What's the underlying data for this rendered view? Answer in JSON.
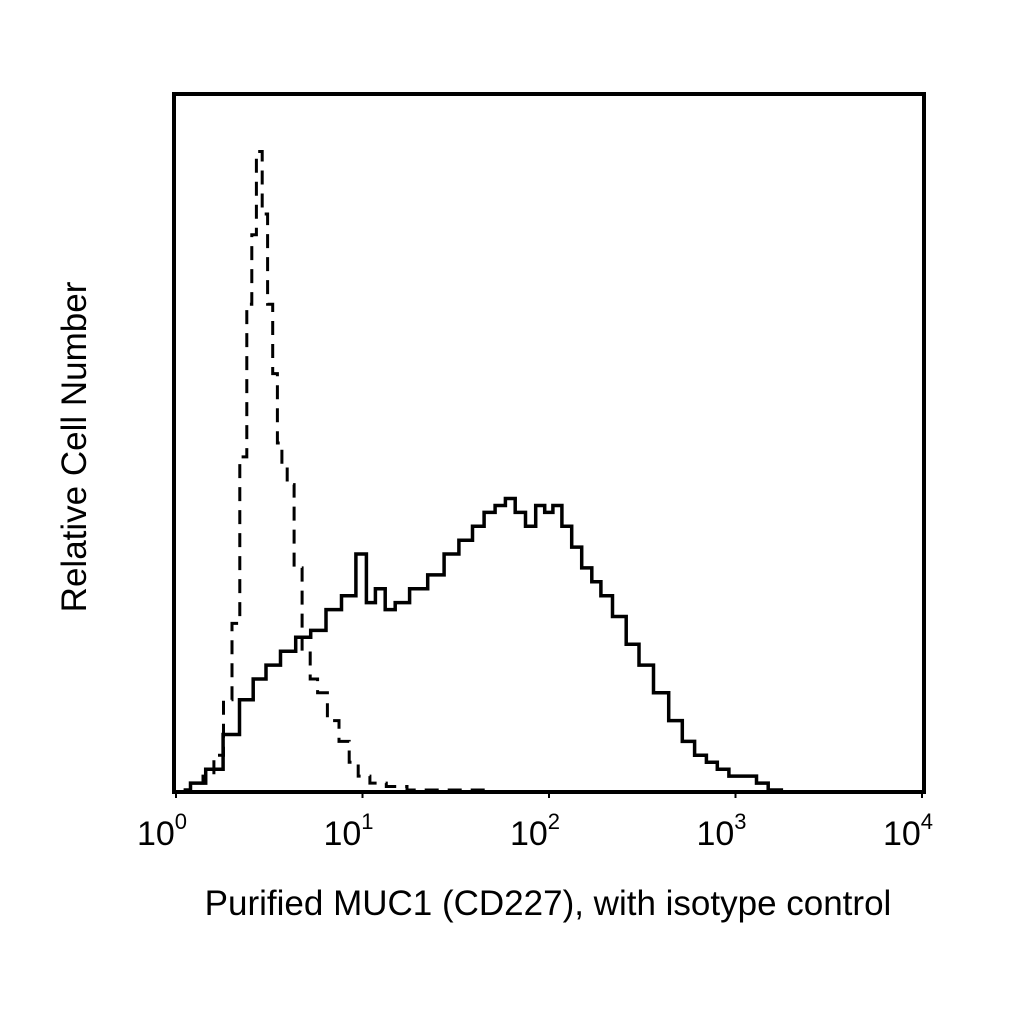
{
  "chart_data": {
    "type": "line",
    "xlabel": "Purified MUC1 (CD227), with isotype control",
    "ylabel": "Relative Cell Number",
    "x_scale": "log",
    "xlim": [
      1,
      10000
    ],
    "ylim": [
      0,
      100
    ],
    "x_ticks": [
      {
        "base": "10",
        "exp": "0",
        "value": 1
      },
      {
        "base": "10",
        "exp": "1",
        "value": 10
      },
      {
        "base": "10",
        "exp": "2",
        "value": 100
      },
      {
        "base": "10",
        "exp": "3",
        "value": 1000
      },
      {
        "base": "10",
        "exp": "4",
        "value": 10000
      }
    ],
    "grid": false,
    "legend": "none",
    "series": [
      {
        "style": "solid",
        "color": "#000000",
        "x": [
          1.1,
          1.3,
          1.6,
          2.0,
          2.4,
          2.8,
          3.3,
          4.0,
          4.8,
          5.8,
          7.0,
          8.5,
          10,
          11,
          12.5,
          14,
          16,
          20,
          25,
          30,
          36,
          42,
          48,
          55,
          62,
          70,
          80,
          90,
          100,
          110,
          125,
          140,
          160,
          180,
          200,
          240,
          280,
          330,
          400,
          480,
          560,
          650,
          750,
          850,
          1000,
          1200,
          1400,
          1600,
          1800
        ],
        "y": [
          0,
          1,
          3,
          8,
          13,
          16,
          18,
          20,
          22,
          23,
          26,
          28,
          34,
          27,
          29,
          26,
          27,
          29,
          31,
          34,
          36,
          38,
          40,
          41,
          42,
          40,
          38,
          41,
          40,
          41,
          38,
          35,
          32,
          30,
          28,
          25,
          21,
          18,
          14,
          10,
          7,
          5,
          4,
          3,
          2,
          2,
          1,
          0,
          0
        ]
      },
      {
        "style": "dashed",
        "color": "#000000",
        "x": [
          1.1,
          1.3,
          1.5,
          1.7,
          1.9,
          2.1,
          2.3,
          2.5,
          2.6,
          2.8,
          3.0,
          3.2,
          3.4,
          3.6,
          3.8,
          4.1,
          4.5,
          5.0,
          5.5,
          6.0,
          7.0,
          8.0,
          9.0,
          10,
          12,
          15,
          20,
          30,
          50
        ],
        "y": [
          0,
          1,
          2,
          5,
          13,
          24,
          48,
          70,
          80,
          92,
          83,
          70,
          60,
          50,
          47,
          44,
          32,
          20,
          16,
          14,
          10,
          7,
          4,
          2,
          1,
          0.5,
          0,
          0,
          0
        ]
      }
    ]
  }
}
